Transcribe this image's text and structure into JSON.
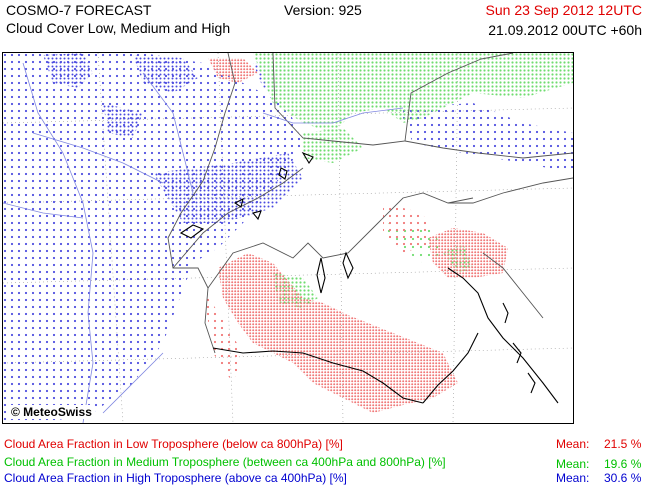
{
  "header": {
    "title": "COSMO-7 FORECAST",
    "subtitle": "Cloud Cover Low, Medium and High",
    "version": "Version: 925",
    "valid_time": "Sun 23 Sep 2012 12UTC",
    "run_time": "21.09.2012 00UTC +60h"
  },
  "map": {
    "copyright": "© MeteoSwiss",
    "background_color": "#ffffff",
    "border_color": "#000000",
    "river_color": "#7f86e0",
    "grid_color": "#999999"
  },
  "legend": [
    {
      "label": "Cloud Area Fraction in Low Troposphere (below ca 800hPa) [%]",
      "mean_label": "Mean:",
      "mean_value": "21.5 %",
      "color": "#e00000",
      "dot_color": "#f07878"
    },
    {
      "label": "Cloud Area Fraction in Medium Troposphere (between ca 400hPa and 800hPa) [%]",
      "mean_label": "Mean:",
      "mean_value": "19.6 %",
      "color": "#00c000",
      "dot_color": "#70dc70"
    },
    {
      "label": "Cloud Area Fraction in High Troposphere (above ca 400hPa) [%]",
      "mean_label": "Mean:",
      "mean_value": "30.6 %",
      "color": "#0000d0",
      "dot_color": "#5050e0"
    }
  ]
}
